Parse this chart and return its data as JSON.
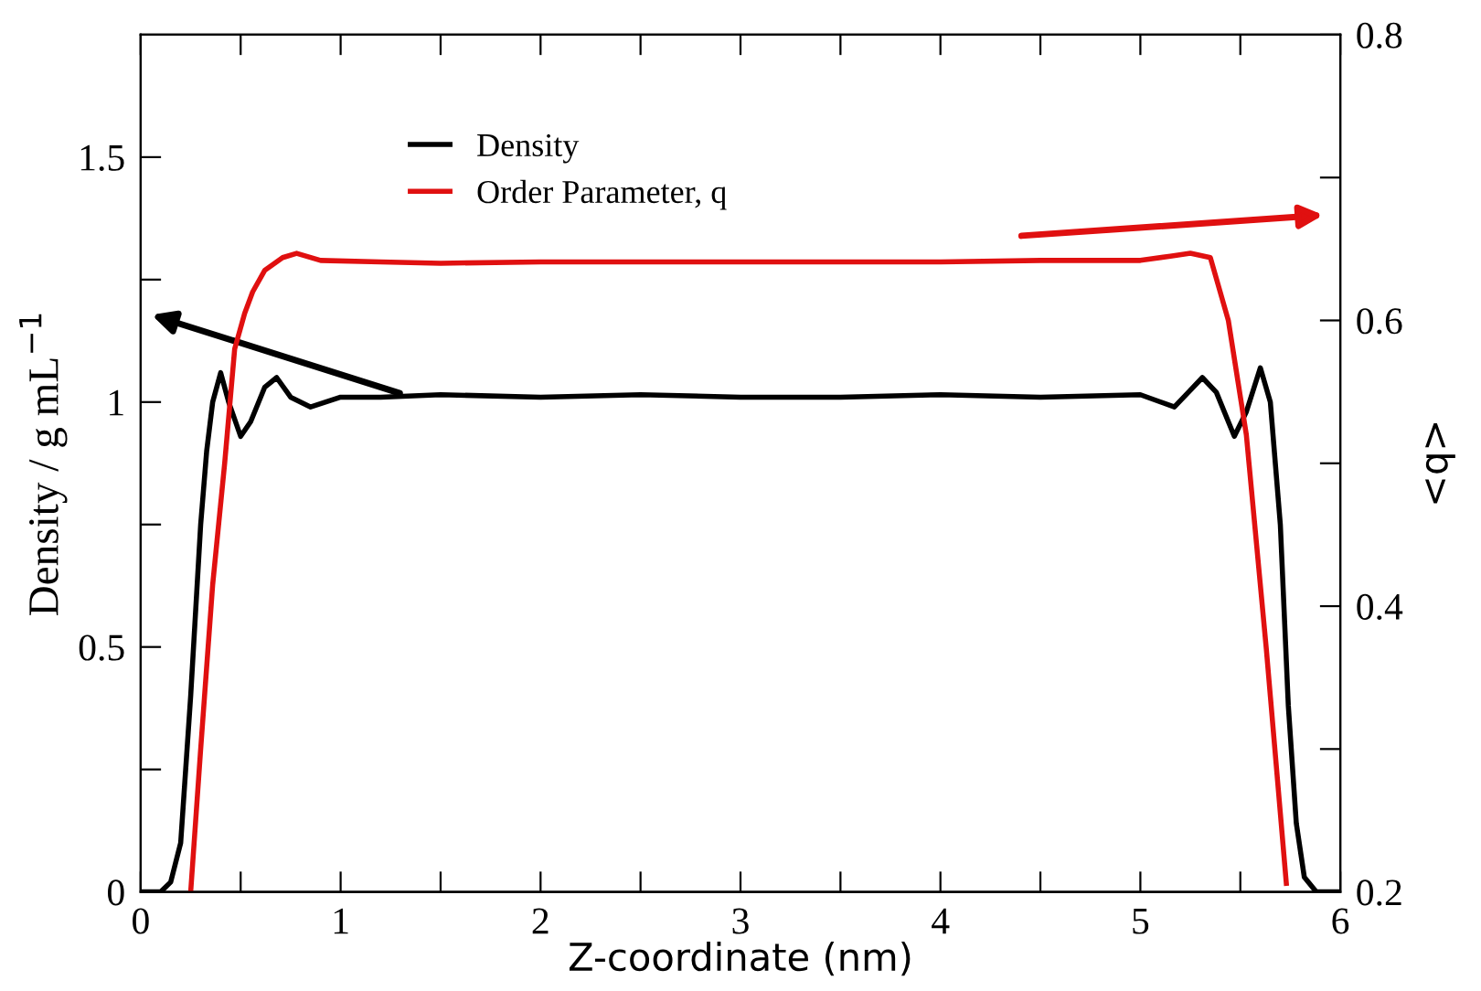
{
  "chart_data": {
    "type": "line",
    "xlabel": "Z-coordinate (nm)",
    "ylabel": "Density / g mL$^{−1}$",
    "y2label": "<q>",
    "legend": "top",
    "grid": false,
    "marker": "none",
    "line_style": "solid",
    "xlim": [
      0,
      6
    ],
    "ylim": [
      0,
      1.75
    ],
    "y2lim": [
      0.2,
      0.8
    ],
    "xticks": [
      0,
      {
        "value": 0.5,
        "label": null
      },
      1,
      {
        "value": 1.5,
        "label": null
      },
      2,
      {
        "value": 2.5,
        "label": null
      },
      3,
      {
        "value": 3.5,
        "label": null
      },
      4,
      {
        "value": 4.5,
        "label": null
      },
      5,
      {
        "value": 5.5,
        "label": null
      },
      6
    ],
    "yticks": [
      0,
      {
        "value": 0.25,
        "label": null
      },
      0.5,
      {
        "value": 0.75,
        "label": null
      },
      1,
      {
        "value": 1.25,
        "label": null
      },
      1.5
    ],
    "y2ticks": [
      0.2,
      {
        "value": 0.3,
        "label": null
      },
      0.4,
      {
        "value": 0.5,
        "label": null
      },
      0.6,
      {
        "value": 0.7,
        "label": null
      },
      0.8
    ],
    "series": [
      {
        "name": "Density",
        "color": "#000000",
        "x": [
          0,
          0.1,
          0.15,
          0.2,
          0.25,
          0.3,
          0.33,
          0.36,
          0.4,
          0.44,
          0.5,
          0.55,
          0.62,
          0.68,
          0.75,
          0.85,
          1.0,
          1.2,
          1.5,
          2.0,
          2.5,
          3.0,
          3.5,
          4.0,
          4.5,
          5.0,
          5.17,
          5.24,
          5.31,
          5.38,
          5.47,
          5.53,
          5.6,
          5.65,
          5.7,
          5.74,
          5.78,
          5.82,
          5.88,
          6.0
        ],
        "values": [
          0,
          0,
          0.02,
          0.1,
          0.4,
          0.75,
          0.9,
          1.0,
          1.06,
          1.0,
          0.93,
          0.96,
          1.03,
          1.05,
          1.01,
          0.99,
          1.01,
          1.01,
          1.015,
          1.01,
          1.015,
          1.01,
          1.01,
          1.015,
          1.01,
          1.015,
          0.99,
          1.02,
          1.05,
          1.02,
          0.93,
          0.98,
          1.07,
          1.0,
          0.75,
          0.38,
          0.14,
          0.03,
          0,
          0
        ]
      },
      {
        "name": "Order Parameter, q",
        "color": "#e01010",
        "axis": "y2",
        "x": [
          0.25,
          0.3,
          0.36,
          0.42,
          0.47,
          0.52,
          0.56,
          0.62,
          0.71,
          0.78,
          0.9,
          1.2,
          1.5,
          2.0,
          2.5,
          3.0,
          3.5,
          4.0,
          4.5,
          5.0,
          5.15,
          5.25,
          5.35,
          5.44,
          5.53,
          5.63,
          5.73
        ],
        "values": [
          0.2,
          0.3,
          0.415,
          0.5,
          0.58,
          0.605,
          0.62,
          0.635,
          0.644,
          0.647,
          0.642,
          0.641,
          0.64,
          0.641,
          0.641,
          0.641,
          0.641,
          0.641,
          0.642,
          0.642,
          0.645,
          0.647,
          0.644,
          0.6,
          0.52,
          0.37,
          0.206
        ]
      }
    ]
  }
}
